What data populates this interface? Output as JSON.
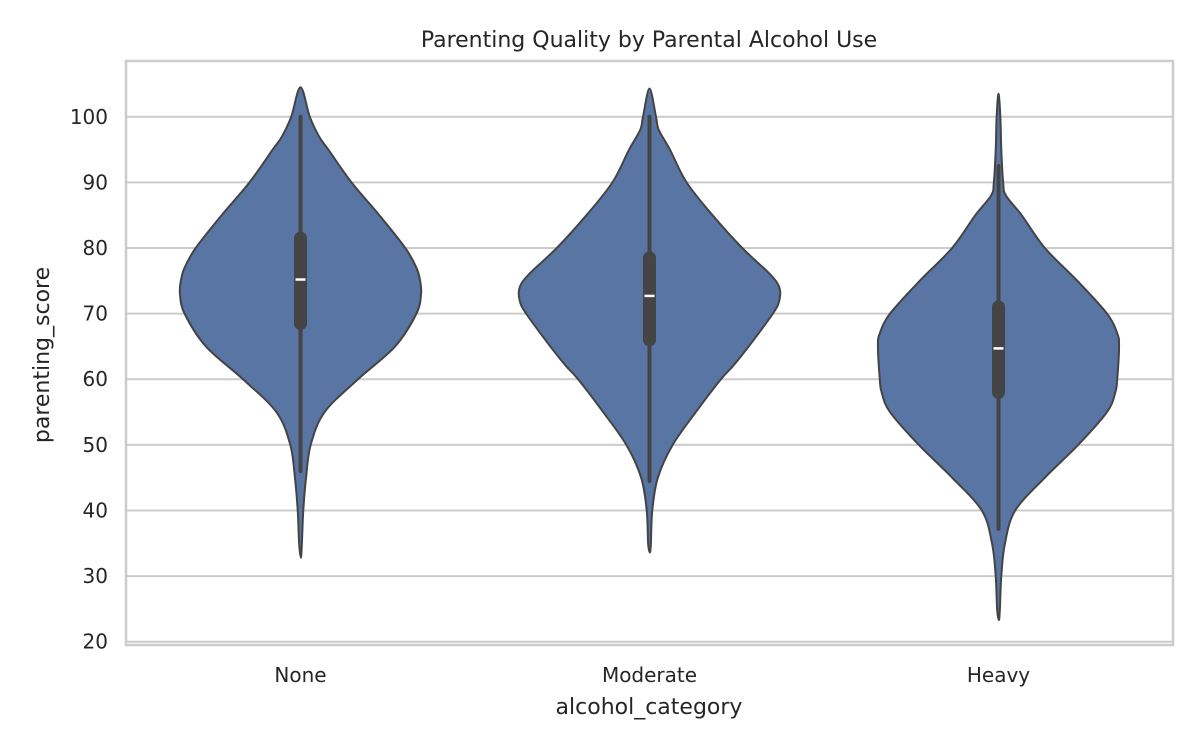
{
  "chart_data": {
    "type": "violin",
    "title": "Parenting Quality by Parental Alcohol Use",
    "xlabel": "alcohol_category",
    "ylabel": "parenting_score",
    "ylim": [
      19.5,
      108.5
    ],
    "yticks": [
      20,
      30,
      40,
      50,
      60,
      70,
      80,
      90,
      100
    ],
    "grid": true,
    "color": "#5875a4",
    "categories": [
      "None",
      "Moderate",
      "Heavy"
    ],
    "summary": [
      {
        "category": "None",
        "min": 46,
        "q1": 67.5,
        "median": 75.2,
        "q3": 82.5,
        "max": 100,
        "kde_min": 32.8,
        "kde_max": 104.5
      },
      {
        "category": "Moderate",
        "min": 44.5,
        "q1": 65,
        "median": 72.7,
        "q3": 79.5,
        "max": 100,
        "kde_min": 33.6,
        "kde_max": 104.3
      },
      {
        "category": "Heavy",
        "min": 37.2,
        "q1": 57,
        "median": 64.7,
        "q3": 72,
        "max": 92.5,
        "kde_min": 23.3,
        "kde_max": 103.5
      }
    ],
    "density_profiles": [
      {
        "category": "None",
        "y": [
          32.8,
          35,
          40,
          45,
          50,
          55,
          60,
          65,
          70,
          73,
          75,
          77,
          80,
          85,
          90,
          95,
          97,
          100,
          104.5
        ],
        "w": [
          0.4,
          1.5,
          3,
          6,
          11,
          26,
          62,
          102,
          125,
          130,
          129,
          125,
          113,
          85,
          55,
          30,
          20,
          10,
          0
        ]
      },
      {
        "category": "Moderate",
        "y": [
          33.6,
          35,
          40,
          45,
          50,
          55,
          60,
          62,
          65,
          70,
          72,
          74,
          76,
          80,
          85,
          90,
          95,
          98,
          100,
          104.3
        ],
        "w": [
          0.4,
          1.5,
          3,
          9,
          25,
          50,
          77,
          90,
          107,
          133,
          140,
          140,
          130,
          100,
          68,
          40,
          22,
          10,
          7,
          0
        ]
      },
      {
        "category": "Heavy",
        "y": [
          23.3,
          25,
          30,
          35,
          40,
          45,
          50,
          55,
          58,
          60,
          65,
          67,
          70,
          75,
          80,
          85,
          88,
          90,
          95,
          100,
          103.5
        ],
        "w": [
          0.4,
          1.5,
          3,
          7,
          18,
          50,
          86,
          117,
          126,
          128,
          130,
          128,
          117,
          85,
          50,
          25,
          8,
          5,
          3,
          2,
          0
        ]
      }
    ]
  }
}
